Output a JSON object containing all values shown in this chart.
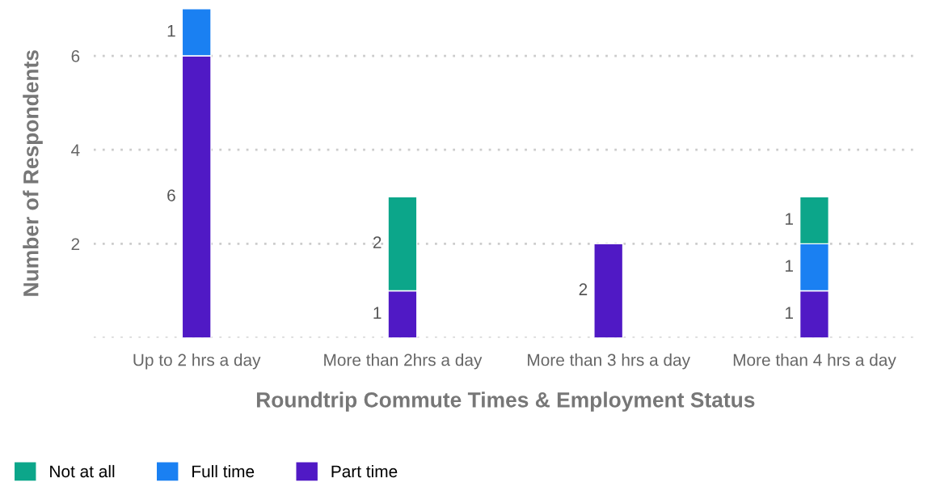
{
  "chart_data": {
    "type": "bar",
    "stacked": true,
    "xlabel": "Roundtrip Commute Times & Employment Status",
    "ylabel": "Number of Respondents",
    "categories": [
      "Up to 2 hrs a day",
      "More than 2hrs a day",
      "More than 3 hrs a day",
      "More than 4 hrs a day"
    ],
    "series": [
      {
        "name": "Part time",
        "color": "#5019c5",
        "values": [
          6,
          1,
          2,
          1
        ]
      },
      {
        "name": "Full time",
        "color": "#1a80f2",
        "values": [
          1,
          null,
          null,
          1
        ]
      },
      {
        "name": "Not at all",
        "color": "#0ca68a",
        "values": [
          null,
          2,
          null,
          1
        ]
      }
    ],
    "ylim": [
      0,
      7
    ],
    "yticks": [
      {
        "value": 0,
        "label": null
      },
      2,
      4,
      6
    ],
    "grid": "y",
    "data_labels": true,
    "legend": "bottom left"
  }
}
